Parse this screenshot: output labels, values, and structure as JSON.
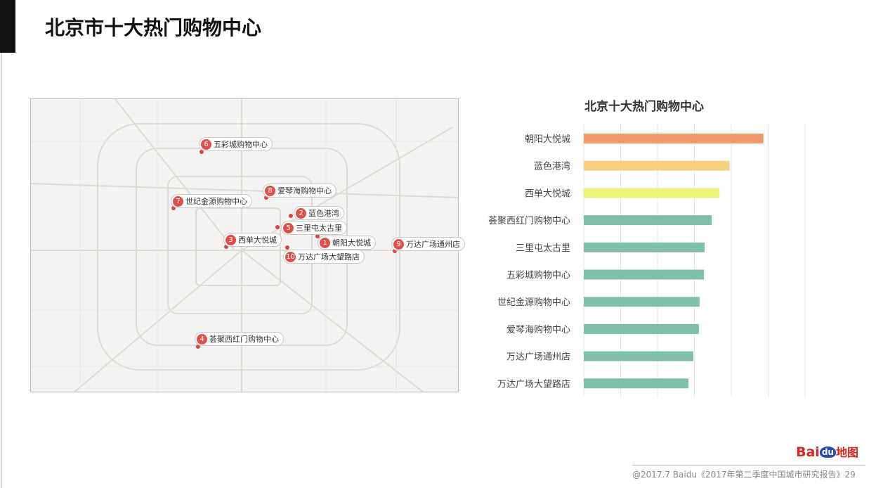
{
  "title": "北京市十大热门购物中心",
  "map": {
    "markers": [
      {
        "n": "1",
        "label": "朝阳大悦城"
      },
      {
        "n": "2",
        "label": "蓝色港湾"
      },
      {
        "n": "3",
        "label": "西单大悦城"
      },
      {
        "n": "4",
        "label": "荟聚西红门购物中心"
      },
      {
        "n": "5",
        "label": "三里屯太古里"
      },
      {
        "n": "6",
        "label": "五彩城购物中心"
      },
      {
        "n": "7",
        "label": "世纪金源购物中心"
      },
      {
        "n": "8",
        "label": "爱琴海购物中心"
      },
      {
        "n": "9",
        "label": "万达广场通州店"
      },
      {
        "n": "10",
        "label": "万达广场大望路店"
      }
    ]
  },
  "chart_data": {
    "type": "bar",
    "orientation": "horizontal",
    "title": "北京十大热门购物中心",
    "categories": [
      "朝阳大悦城",
      "蓝色港湾",
      "西单大悦城",
      "荟聚西红门购物中心",
      "三里屯太古里",
      "五彩城购物中心",
      "世纪金源购物中心",
      "爱琴海购物中心",
      "万达广场通州店",
      "万达广场大望路店"
    ],
    "values": [
      4.87,
      3.95,
      3.68,
      3.47,
      3.28,
      3.26,
      3.14,
      3.12,
      2.97,
      2.84
    ],
    "colors": [
      "#f0996a",
      "#f8cf7c",
      "#e9f57a",
      "#80bfaa",
      "#80bfaa",
      "#80bfaa",
      "#80bfaa",
      "#80bfaa",
      "#80bfaa",
      "#80bfaa"
    ],
    "xlim": [
      0,
      6
    ],
    "grid": true,
    "xlabel": "",
    "ylabel": ""
  },
  "footer": {
    "text": "@2017.7 Baidu《2017年第二季度中国城市研究报告》29",
    "logo": "Baidu地图"
  }
}
